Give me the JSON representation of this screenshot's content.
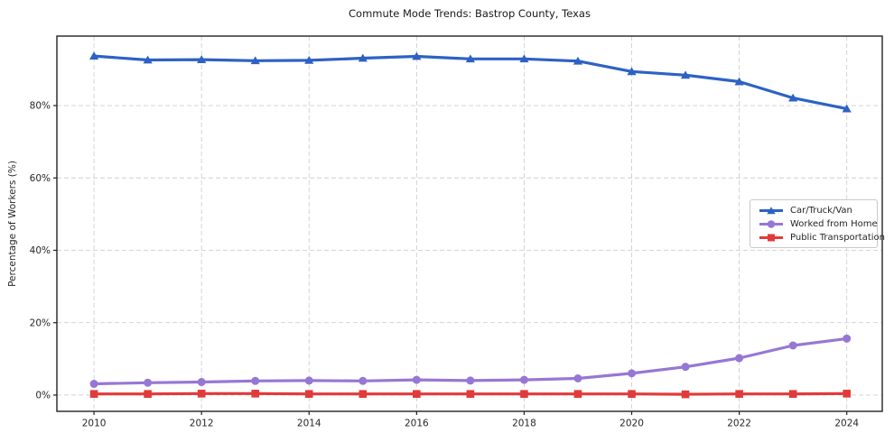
{
  "chart_data": {
    "type": "line",
    "title": "Commute Mode Trends: Bastrop County, Texas",
    "xlabel": "",
    "ylabel": "Percentage of Workers (%)",
    "x": [
      2010,
      2011,
      2012,
      2013,
      2014,
      2015,
      2016,
      2017,
      2018,
      2019,
      2020,
      2021,
      2022,
      2023,
      2024
    ],
    "series": [
      {
        "name": "Car/Truck/Van",
        "color": "#2d62c4",
        "marker": "triangle",
        "values": [
          93.7,
          92.6,
          92.7,
          92.4,
          92.5,
          93.1,
          93.6,
          92.9,
          92.9,
          92.3,
          89.4,
          88.4,
          86.6,
          82.1,
          79.1
        ]
      },
      {
        "name": "Worked from Home",
        "color": "#9777d4",
        "marker": "circle",
        "values": [
          3.1,
          3.4,
          3.6,
          3.9,
          4.0,
          3.9,
          4.2,
          4.0,
          4.2,
          4.6,
          6.0,
          7.8,
          10.2,
          13.7,
          15.6
        ]
      },
      {
        "name": "Public Transportation",
        "color": "#e23a3a",
        "marker": "square",
        "values": [
          0.3,
          0.3,
          0.4,
          0.4,
          0.3,
          0.3,
          0.3,
          0.3,
          0.3,
          0.3,
          0.3,
          0.2,
          0.3,
          0.3,
          0.4
        ]
      }
    ],
    "xticks": [
      2010,
      2012,
      2014,
      2016,
      2018,
      2020,
      2022,
      2024
    ],
    "yticks": [
      0,
      20,
      40,
      60,
      80
    ],
    "ytick_suffix": "%",
    "xlim": [
      2009.31,
      2024.66
    ],
    "ylim": [
      -4.5,
      99.2
    ],
    "grid": true,
    "legend_position": "center-right",
    "grid_color": "#cfcfcf",
    "frame_color": "#222222",
    "text_color": "#262626"
  }
}
